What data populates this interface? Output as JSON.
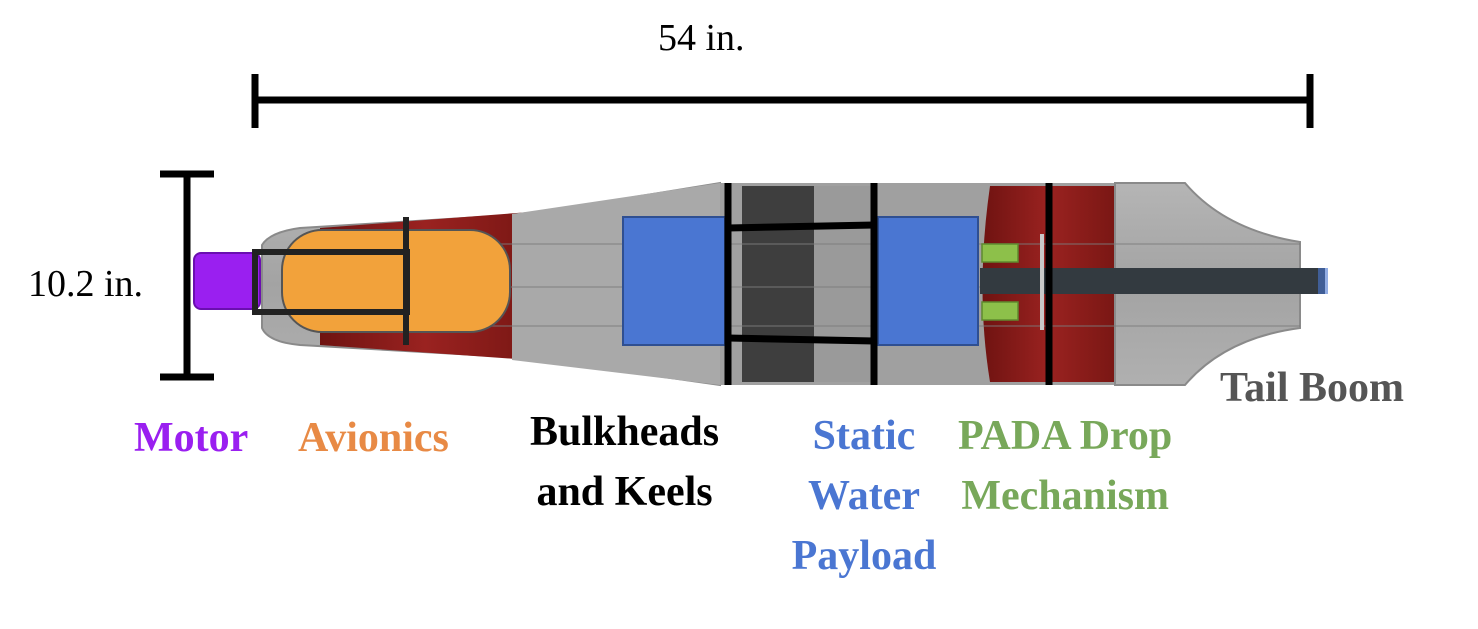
{
  "dimensions": {
    "length": "54 in.",
    "height": "10.2 in."
  },
  "legend": {
    "motor": {
      "label": "Motor",
      "color": "#9a1ff0"
    },
    "avionics": {
      "label": "Avionics",
      "color": "#e88a45"
    },
    "bulkheads": {
      "line1": "Bulkheads",
      "line2": "and Keels",
      "color": "#000000"
    },
    "static_water": {
      "line1": "Static",
      "line2": "Water",
      "line3": "Payload",
      "color": "#4a76d2"
    },
    "pada": {
      "line1": "PADA Drop",
      "line2": "Mechanism",
      "color": "#78a85a"
    },
    "tail_boom": {
      "label": "Tail Boom",
      "color": "#555555"
    }
  },
  "colors": {
    "fuselage": "#a9a9a9",
    "fuselage_dark": "#8c8c8c",
    "skin_red": "#8b1a17",
    "motor_fill": "#9a1ff0",
    "avionics_fill": "#f2a23b",
    "payload_fill": "#4a76d2",
    "pada_fill": "#8dc04a",
    "boom_fill": "#333a40"
  }
}
